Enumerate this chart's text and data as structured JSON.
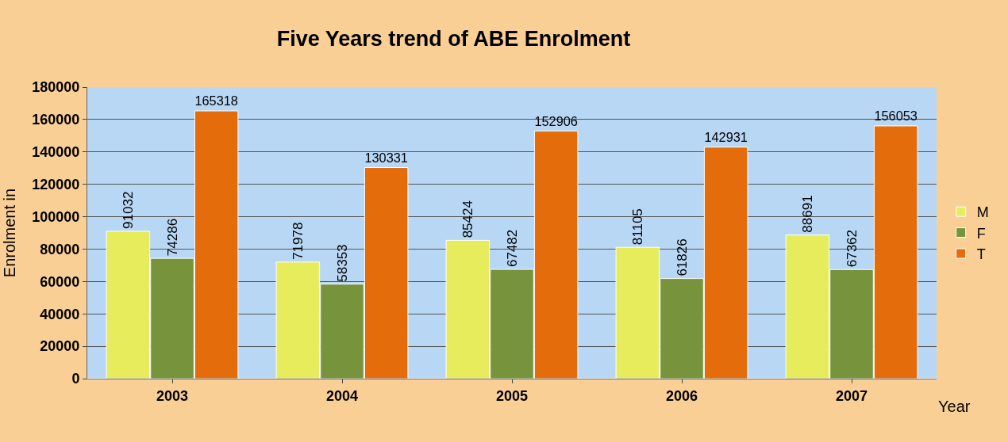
{
  "chart_data": {
    "type": "bar",
    "title": "Five Years trend of ABE Enrolment",
    "xlabel": "Year",
    "ylabel": "Enrolment in",
    "categories": [
      "2003",
      "2004",
      "2005",
      "2006",
      "2007"
    ],
    "series": [
      {
        "name": "M",
        "color": "#e6ec5c",
        "values": [
          91032,
          71978,
          85424,
          81105,
          88691
        ]
      },
      {
        "name": "F",
        "color": "#77933c",
        "values": [
          74286,
          58353,
          67482,
          61826,
          67362
        ]
      },
      {
        "name": "T",
        "color": "#e46c0a",
        "values": [
          165318,
          130331,
          152906,
          142931,
          156053
        ]
      }
    ],
    "ylim": [
      0,
      180000
    ],
    "yticks": [
      0,
      20000,
      40000,
      60000,
      80000,
      100000,
      120000,
      140000,
      160000,
      180000
    ],
    "grid": "y",
    "legend": "right",
    "data_labels": true
  }
}
